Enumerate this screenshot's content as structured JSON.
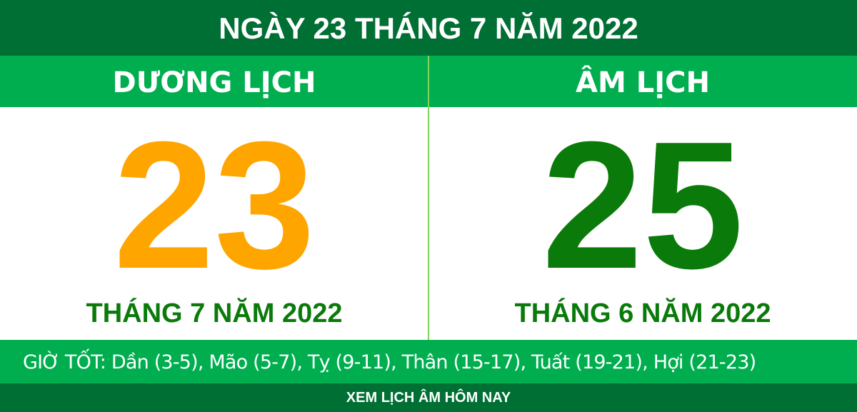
{
  "header": {
    "title": "NGÀY 23 THÁNG 7 NĂM 2022"
  },
  "solar": {
    "label": "DƯƠNG LỊCH",
    "day": "23",
    "month_year": "THÁNG 7 NĂM 2022"
  },
  "lunar": {
    "label": "ÂM LỊCH",
    "day": "25",
    "month_year": "THÁNG 6 NĂM 2022"
  },
  "good_hours": "GIỜ TỐT: Dần (3-5), Mão (5-7), Tỵ (9-11), Thân (15-17), Tuất (19-21), Hợi (21-23)",
  "footer": {
    "link": "XEM LỊCH ÂM HÔM NAY"
  },
  "colors": {
    "dark_green": "#006f34",
    "green": "#00ae50",
    "orange": "#ffa500",
    "day_green": "#0a7a0a"
  }
}
